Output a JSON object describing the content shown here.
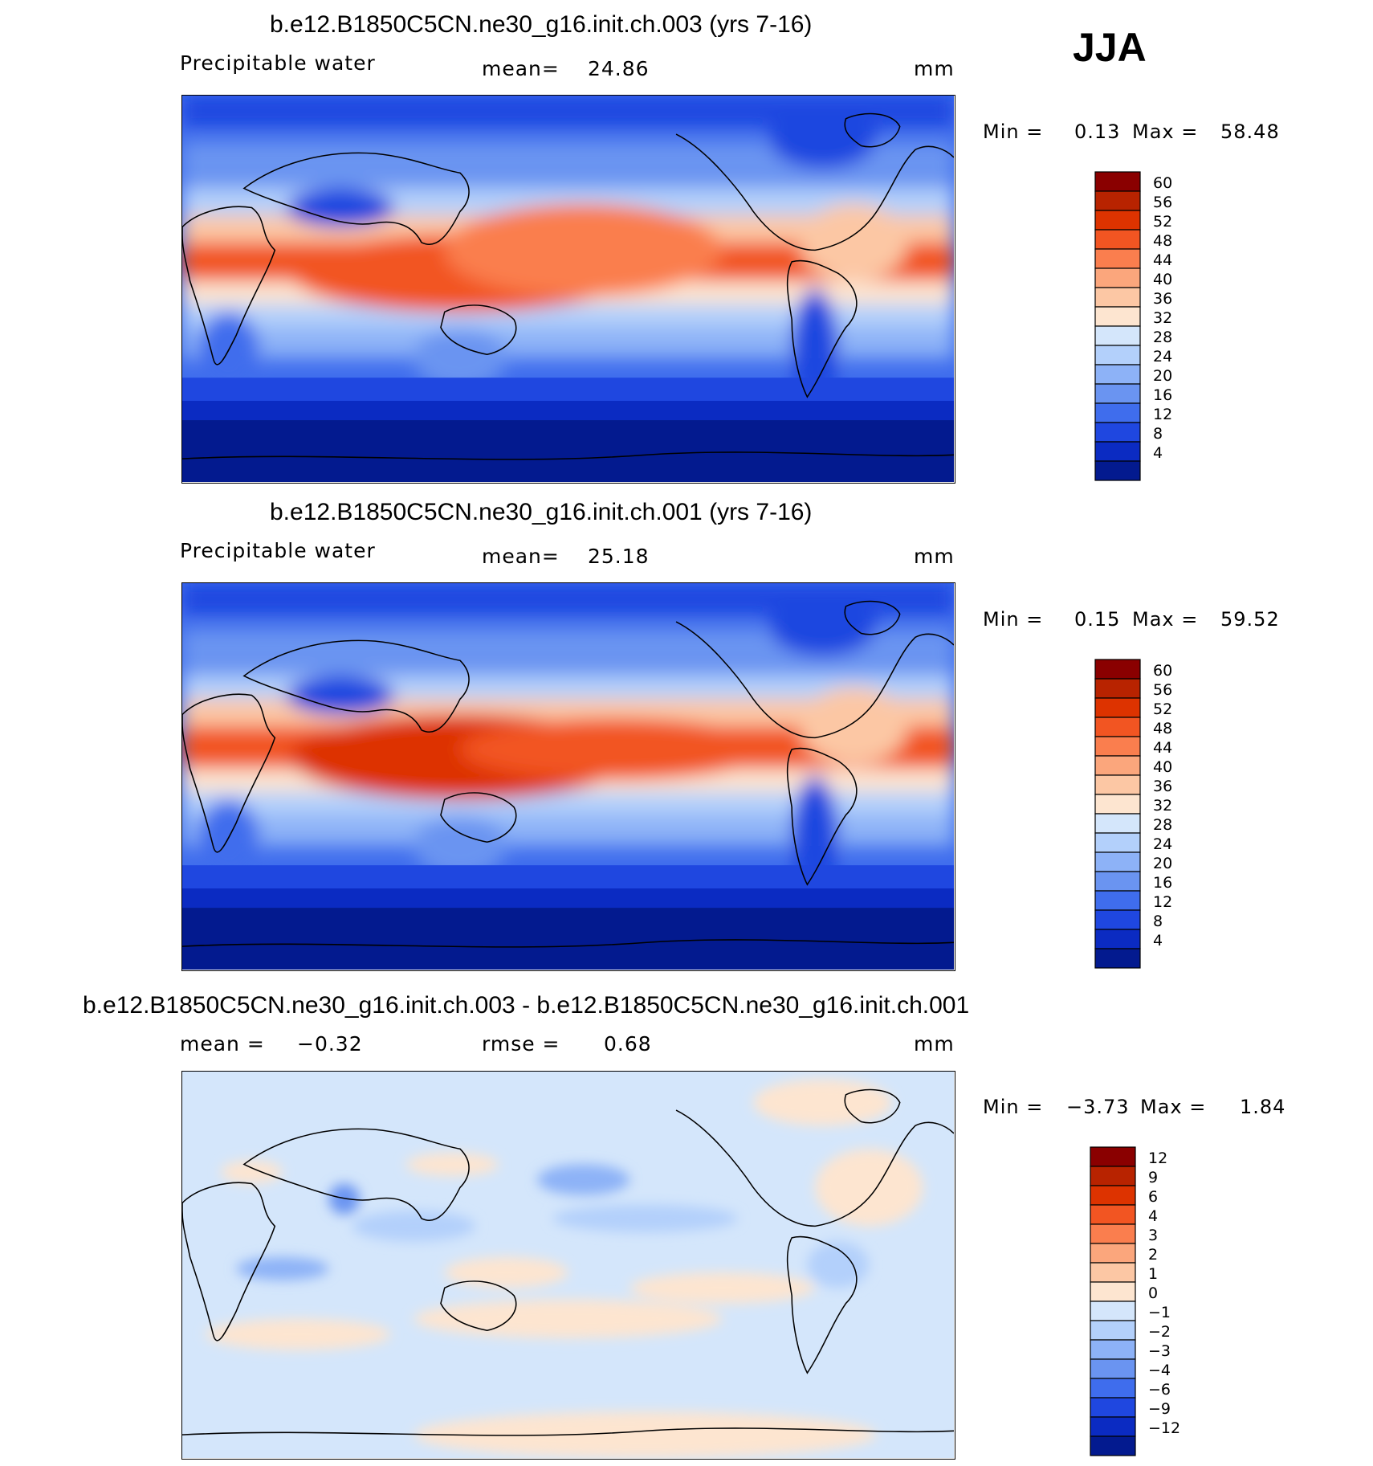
{
  "season": "JJA",
  "units": "mm",
  "chart_data": [
    {
      "type": "heatmap",
      "title": "b.e12.B1850C5CN.ne30_g16.init.ch.003 (yrs 7-16)",
      "variable": "Precipitable water",
      "mean_label": "mean=",
      "mean_value": "24.86",
      "units": "mm",
      "min_label": "Min =",
      "min_value": "0.13",
      "max_label": "Max =",
      "max_value": "58.48",
      "colorbar_levels": [
        "60",
        "56",
        "52",
        "48",
        "44",
        "40",
        "36",
        "32",
        "28",
        "24",
        "20",
        "16",
        "12",
        "8",
        "4"
      ],
      "colors": [
        "#8a0000",
        "#b82300",
        "#dd3300",
        "#f25522",
        "#fa7e4e",
        "#fba67c",
        "#fcc7a4",
        "#fde5d0",
        "#d4e6fb",
        "#b3d0fb",
        "#8db2f7",
        "#6a94f1",
        "#3f6ded",
        "#1f47e0",
        "#0b2bc2",
        "#031a8f"
      ]
    },
    {
      "type": "heatmap",
      "title": "b.e12.B1850C5CN.ne30_g16.init.ch.001 (yrs 7-16)",
      "variable": "Precipitable water",
      "mean_label": "mean=",
      "mean_value": "25.18",
      "units": "mm",
      "min_label": "Min =",
      "min_value": "0.15",
      "max_label": "Max =",
      "max_value": "59.52",
      "colorbar_levels": [
        "60",
        "56",
        "52",
        "48",
        "44",
        "40",
        "36",
        "32",
        "28",
        "24",
        "20",
        "16",
        "12",
        "8",
        "4"
      ],
      "colors": [
        "#8a0000",
        "#b82300",
        "#dd3300",
        "#f25522",
        "#fa7e4e",
        "#fba67c",
        "#fcc7a4",
        "#fde5d0",
        "#d4e6fb",
        "#b3d0fb",
        "#8db2f7",
        "#6a94f1",
        "#3f6ded",
        "#1f47e0",
        "#0b2bc2",
        "#031a8f"
      ]
    },
    {
      "type": "heatmap",
      "title": "b.e12.B1850C5CN.ne30_g16.init.ch.003 - b.e12.B1850C5CN.ne30_g16.init.ch.001",
      "mean_label": "mean =",
      "mean_value": "−0.32",
      "rmse_label": "rmse =",
      "rmse_value": "0.68",
      "units": "mm",
      "min_label": "Min =",
      "min_value": "−3.73",
      "max_label": "Max =",
      "max_value": "1.84",
      "colorbar_levels": [
        "12",
        "9",
        "6",
        "4",
        "3",
        "2",
        "1",
        "0",
        "−1",
        "−2",
        "−3",
        "−4",
        "−6",
        "−9",
        "−12"
      ],
      "colors": [
        "#8a0000",
        "#b82300",
        "#dd3300",
        "#f25522",
        "#fa7e4e",
        "#fba67c",
        "#fcc7a4",
        "#fde5d0",
        "#d4e6fb",
        "#b3d0fb",
        "#8db2f7",
        "#6a94f1",
        "#3f6ded",
        "#1f47e0",
        "#0b2bc2",
        "#031a8f"
      ]
    }
  ]
}
